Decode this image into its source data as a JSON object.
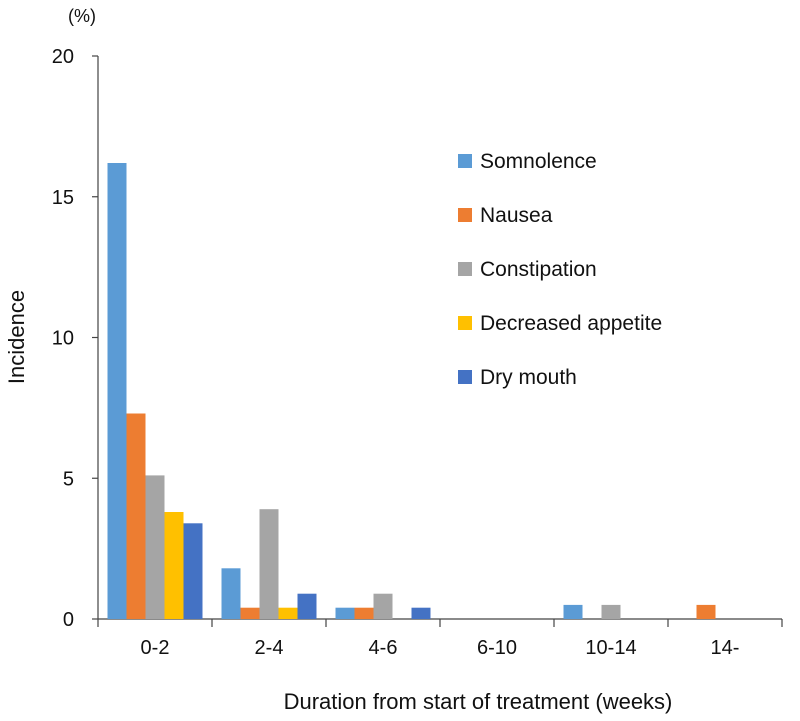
{
  "chart_data": {
    "type": "bar",
    "title": "",
    "unit_label": "(%)",
    "xlabel": "Duration from start of treatment (weeks)",
    "ylabel": "Incidence",
    "ylim": [
      0,
      20
    ],
    "yticks": [
      "0",
      "5",
      "10",
      "15",
      "20"
    ],
    "grid": false,
    "legend_position": "top-right",
    "categories": [
      "0-2",
      "2-4",
      "4-6",
      "6-10",
      "10-14",
      "14-"
    ],
    "series": [
      {
        "name": "Somnolence",
        "color": "#5b9bd5",
        "values": [
          16.2,
          1.8,
          0.4,
          0,
          0.5,
          0
        ]
      },
      {
        "name": "Nausea",
        "color": "#ed7d31",
        "values": [
          7.3,
          0.4,
          0.4,
          0,
          0,
          0.5
        ]
      },
      {
        "name": "Constipation",
        "color": "#a5a5a5",
        "values": [
          5.1,
          3.9,
          0.9,
          0,
          0.5,
          0
        ]
      },
      {
        "name": "Decreased appetite",
        "color": "#ffc000",
        "values": [
          3.8,
          0.4,
          0,
          0,
          0,
          0
        ]
      },
      {
        "name": "Dry mouth",
        "color": "#4472c4",
        "values": [
          3.4,
          0.9,
          0.4,
          0,
          0,
          0
        ]
      }
    ]
  }
}
